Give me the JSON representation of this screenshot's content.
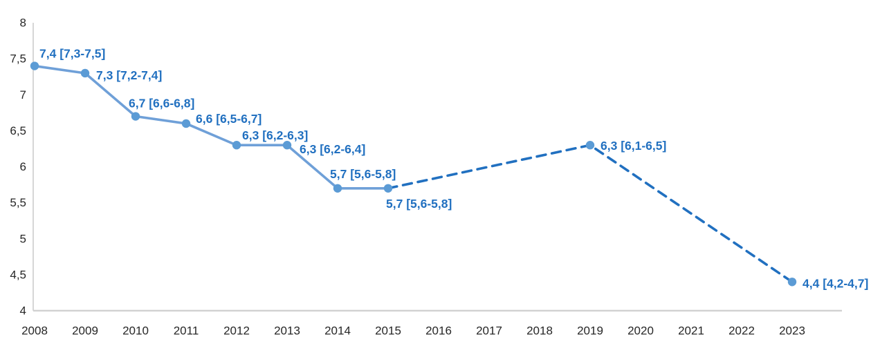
{
  "chart_data": {
    "type": "line",
    "title": "",
    "xlabel": "",
    "ylabel": "",
    "grid": false,
    "legend": "none",
    "decimal_separator": ",",
    "x_categories": [
      "2008",
      "2009",
      "2010",
      "2011",
      "2012",
      "2013",
      "2014",
      "2015",
      "2016",
      "2017",
      "2018",
      "2019",
      "2020",
      "2021",
      "2022",
      "2023"
    ],
    "ylim": [
      4,
      8
    ],
    "y_ticks": [
      {
        "value": 8,
        "label": "8"
      },
      {
        "value": 7.5,
        "label": "7,5"
      },
      {
        "value": 7,
        "label": "7"
      },
      {
        "value": 6.5,
        "label": "6,5"
      },
      {
        "value": 6,
        "label": "6"
      },
      {
        "value": 5.5,
        "label": "5,5"
      },
      {
        "value": 5,
        "label": "5"
      },
      {
        "value": 4.5,
        "label": "4,5"
      },
      {
        "value": 4,
        "label": "4"
      }
    ],
    "series": [
      {
        "name": "rate-with-95pct-ci",
        "points": [
          {
            "year": "2008",
            "value": 7.4,
            "ci_low": 7.3,
            "ci_high": 7.5,
            "label": "7,4 [7,3-7,5]",
            "label_offset": [
              7,
              -18
            ]
          },
          {
            "year": "2009",
            "value": 7.3,
            "ci_low": 7.2,
            "ci_high": 7.4,
            "label": "7,3 [7,2-7,4]",
            "label_offset": [
              16,
              3
            ]
          },
          {
            "year": "2010",
            "value": 6.7,
            "ci_low": 6.6,
            "ci_high": 6.8,
            "label": "6,7 [6,6-6,8]",
            "label_offset": [
              -10,
              -19
            ]
          },
          {
            "year": "2011",
            "value": 6.6,
            "ci_low": 6.5,
            "ci_high": 6.7,
            "label": "6,6 [6,5-6,7]",
            "label_offset": [
              14,
              -7
            ]
          },
          {
            "year": "2012",
            "value": 6.3,
            "ci_low": 6.2,
            "ci_high": 6.3,
            "label": "6,3 [6,2-6,3]",
            "label_offset": [
              8,
              -14
            ]
          },
          {
            "year": "2013",
            "value": 6.3,
            "ci_low": 6.2,
            "ci_high": 6.4,
            "label": "6,3 [6,2-6,4]",
            "label_offset": [
              18,
              6
            ]
          },
          {
            "year": "2014",
            "value": 5.7,
            "ci_low": 5.6,
            "ci_high": 5.8,
            "label": "5,7 [5,6-5,8]",
            "label_offset": [
              -11,
              -21
            ]
          },
          {
            "year": "2015",
            "value": 5.7,
            "ci_low": 5.6,
            "ci_high": 5.8,
            "label": "5,7 [5,6-5,8]",
            "label_offset": [
              -3,
              22
            ]
          },
          {
            "year": "2019",
            "value": 6.3,
            "ci_low": 6.1,
            "ci_high": 6.5,
            "label": "6,3 [6,1-6,5]",
            "label_offset": [
              15,
              1
            ]
          },
          {
            "year": "2023",
            "value": 4.4,
            "ci_low": 4.2,
            "ci_high": 4.7,
            "label": "4,4 [4,2-4,7]",
            "label_offset": [
              15,
              2
            ]
          }
        ],
        "segments": [
          {
            "style": "solid",
            "years": [
              "2008",
              "2009",
              "2010",
              "2011",
              "2012",
              "2013",
              "2014",
              "2015"
            ]
          },
          {
            "style": "dashed",
            "years": [
              "2015",
              "2019",
              "2023"
            ]
          }
        ]
      }
    ],
    "colors": {
      "solid_line": "#6FA0D8",
      "dashed_line": "#2170C0",
      "marker": "#5B9BD5",
      "data_label": "#2170C0",
      "axis_line_y": "#BFBFBF",
      "axis_line_x": "#D2D2D2",
      "tick_label": "#262626",
      "background": "#FFFFFF"
    }
  }
}
